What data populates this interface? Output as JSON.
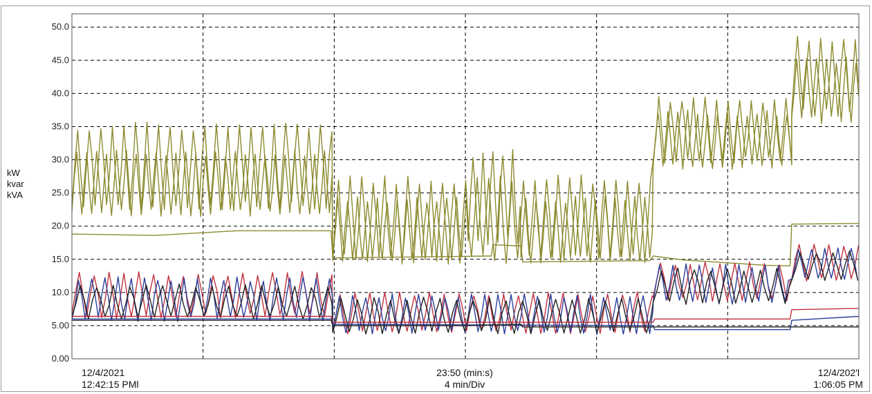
{
  "chart_data": {
    "type": "line",
    "ylabel_lines": [
      "kW",
      "kvar",
      "kVA"
    ],
    "ylim": [
      0,
      52
    ],
    "yticks": [
      0,
      5,
      10,
      15,
      20,
      25,
      30,
      35,
      40,
      45,
      50
    ],
    "ytick_labels": [
      "0.00",
      "5.00",
      "10.0",
      "15.0",
      "20.0",
      "25.0",
      "30.0",
      "35.0",
      "40.0",
      "45.0",
      "50.0"
    ],
    "xlim_min": [
      0,
      23.833
    ],
    "x_unit": "minutes from start",
    "x_divisions": 6,
    "grid": true,
    "footer": {
      "left_date": "12/4/2021",
      "left_time": "12:42:15 PMl",
      "center_span": "23:50 (min:s)",
      "center_div": "4 min/Div",
      "right_date": "12/4/202'l",
      "right_time": "1:06:05 PM"
    },
    "colors": {
      "olive": "#8b8a2e",
      "red": "#c0313f",
      "blue": "#2b3f9a",
      "black": "#222222",
      "grid": "#000000",
      "border": "#888888"
    },
    "series": [
      {
        "color_key": "olive",
        "type": "oscillating",
        "segments": [
          {
            "x0": 0.0,
            "x1": 7.9,
            "low": 23,
            "high": 35,
            "period": 0.35
          },
          {
            "x0": 7.9,
            "x1": 17.6,
            "low": 15,
            "high": 27,
            "period": 0.35
          },
          {
            "x0": 17.6,
            "x1": 21.8,
            "low": 30,
            "high": 39,
            "period": 0.35
          },
          {
            "x0": 21.8,
            "x1": 23.833,
            "low": 37,
            "high": 48,
            "period": 0.35
          }
        ]
      },
      {
        "color_key": "olive",
        "type": "oscillating",
        "segments": [
          {
            "x0": 0.0,
            "x1": 7.9,
            "low": 22,
            "high": 31,
            "period": 0.3
          },
          {
            "x0": 7.9,
            "x1": 12.0,
            "low": 15,
            "high": 24,
            "period": 0.3
          },
          {
            "x0": 12.0,
            "x1": 13.6,
            "low": 18,
            "high": 31,
            "period": 0.3
          },
          {
            "x0": 13.6,
            "x1": 17.6,
            "low": 15,
            "high": 24,
            "period": 0.3
          },
          {
            "x0": 17.6,
            "x1": 21.8,
            "low": 29,
            "high": 37,
            "period": 0.3
          },
          {
            "x0": 21.8,
            "x1": 23.833,
            "low": 36,
            "high": 45,
            "period": 0.3
          }
        ]
      },
      {
        "color_key": "olive",
        "type": "steps",
        "points": [
          [
            0.0,
            18.8
          ],
          [
            2.5,
            18.6
          ],
          [
            5.0,
            19.3
          ],
          [
            7.85,
            19.3
          ],
          [
            7.9,
            15.2
          ],
          [
            12.7,
            15.5
          ],
          [
            12.75,
            17.2
          ],
          [
            13.6,
            17.0
          ],
          [
            13.65,
            14.6
          ],
          [
            17.5,
            14.8
          ],
          [
            17.6,
            15.5
          ],
          [
            18.5,
            14.9
          ],
          [
            21.0,
            14.1
          ],
          [
            21.75,
            14.0
          ],
          [
            21.8,
            20.3
          ],
          [
            23.833,
            20.4
          ]
        ]
      },
      {
        "color_key": "red",
        "type": "oscillating",
        "segments": [
          {
            "x0": 0.0,
            "x1": 7.9,
            "low": 6.5,
            "high": 12.8,
            "period": 0.45
          },
          {
            "x0": 7.9,
            "x1": 17.6,
            "low": 4.0,
            "high": 9.8,
            "period": 0.45
          },
          {
            "x0": 17.6,
            "x1": 21.8,
            "low": 9.0,
            "high": 14.3,
            "period": 0.45
          },
          {
            "x0": 21.8,
            "x1": 23.833,
            "low": 12.0,
            "high": 17.0,
            "period": 0.45
          }
        ]
      },
      {
        "color_key": "blue",
        "type": "oscillating",
        "segments": [
          {
            "x0": 0.0,
            "x1": 7.9,
            "low": 6.0,
            "high": 12.0,
            "period": 0.4
          },
          {
            "x0": 7.9,
            "x1": 17.6,
            "low": 4.0,
            "high": 9.5,
            "period": 0.4
          },
          {
            "x0": 17.6,
            "x1": 21.8,
            "low": 8.5,
            "high": 14.0,
            "period": 0.4
          },
          {
            "x0": 21.8,
            "x1": 23.833,
            "low": 12.0,
            "high": 16.5,
            "period": 0.4
          }
        ]
      },
      {
        "color_key": "black",
        "type": "oscillating",
        "segments": [
          {
            "x0": 0.0,
            "x1": 7.9,
            "low": 6.2,
            "high": 11.0,
            "period": 0.5
          },
          {
            "x0": 7.9,
            "x1": 17.6,
            "low": 4.0,
            "high": 9.0,
            "period": 0.5
          },
          {
            "x0": 17.6,
            "x1": 21.8,
            "low": 8.5,
            "high": 13.5,
            "period": 0.5
          },
          {
            "x0": 21.8,
            "x1": 23.833,
            "low": 12.0,
            "high": 16.0,
            "period": 0.5
          }
        ]
      },
      {
        "color_key": "red",
        "type": "steps",
        "points": [
          [
            0.0,
            6.4
          ],
          [
            7.85,
            6.4
          ],
          [
            7.9,
            5.5
          ],
          [
            17.6,
            5.5
          ],
          [
            17.65,
            6.0
          ],
          [
            21.75,
            6.0
          ],
          [
            21.8,
            7.4
          ],
          [
            23.833,
            7.6
          ]
        ]
      },
      {
        "color_key": "blue",
        "type": "steps",
        "points": [
          [
            0.0,
            6.0
          ],
          [
            7.85,
            6.0
          ],
          [
            7.9,
            5.2
          ],
          [
            17.6,
            5.0
          ],
          [
            17.65,
            4.4
          ],
          [
            21.75,
            4.4
          ],
          [
            21.8,
            5.8
          ],
          [
            23.833,
            6.4
          ]
        ]
      },
      {
        "color_key": "black",
        "type": "steps",
        "points": [
          [
            0.0,
            5.8
          ],
          [
            7.85,
            5.8
          ],
          [
            7.9,
            5.0
          ],
          [
            12.0,
            5.0
          ],
          [
            13.6,
            5.2
          ],
          [
            13.65,
            4.8
          ],
          [
            17.6,
            4.8
          ],
          [
            23.833,
            4.8
          ]
        ]
      }
    ]
  }
}
